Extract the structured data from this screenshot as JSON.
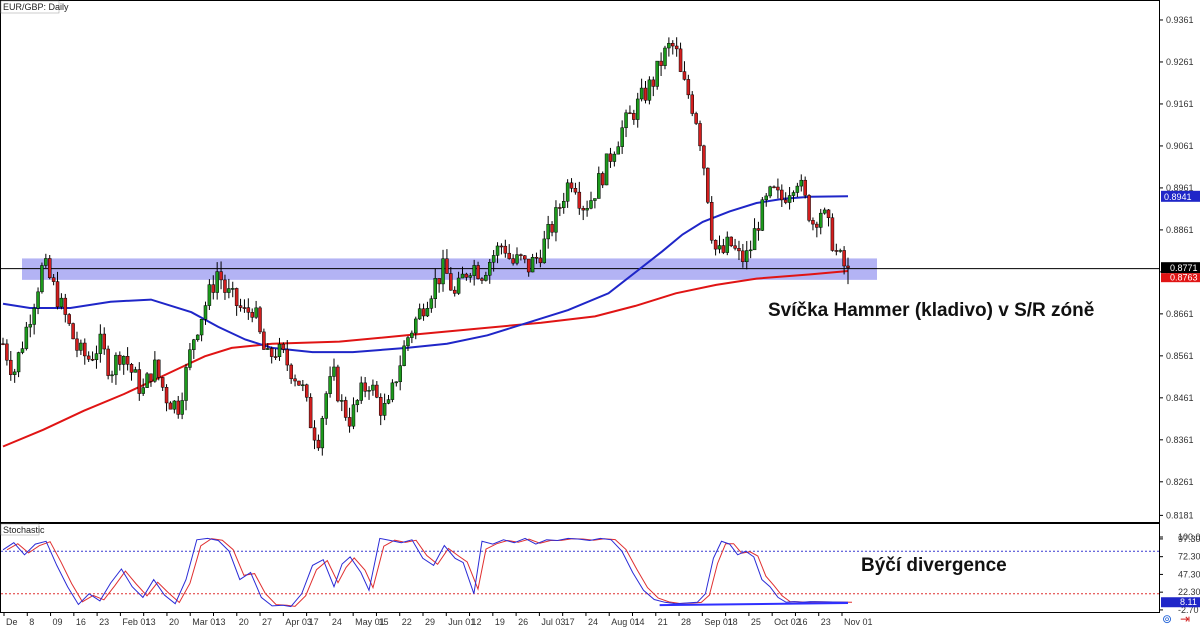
{
  "chart_title": "EUR/GBP: Daily",
  "stochastic_title": "Stochastic",
  "colors": {
    "bull_candle": "#1c9a1c",
    "bear_candle": "#d21e1e",
    "ma_blue": "#1f26c8",
    "ma_red": "#e01414",
    "zone_fill": "#9a9af0",
    "stoch_k": "#2b2bd6",
    "stoch_d": "#e03030",
    "level_line_blue": "#3a3ad0",
    "level_line_red": "#e03030",
    "divergence_line": "#3030ff"
  },
  "annotations": {
    "hammer": "Svíčka Hammer (kladivo) v S/R zóně",
    "divergence": "Býčí divergence"
  },
  "price_badges": {
    "blue_ma": "0.8941",
    "price": "0.8771",
    "red_ma": "0.8763",
    "stoch_value": "8.11"
  },
  "chart_data": {
    "type": "candlestick",
    "title": "EUR/GBP: Daily",
    "y_ticks": [
      "0.9361",
      "0.9261",
      "0.9161",
      "0.9061",
      "0.8961",
      "0.8861",
      "0.8761",
      "0.8661",
      "0.8561",
      "0.8461",
      "0.8361",
      "0.8261",
      "0.8181"
    ],
    "ylim": [
      0.817,
      0.938
    ],
    "x_tick_labels": [
      "De",
      "8",
      "09",
      "16",
      "23",
      "Feb 01",
      "13",
      "20",
      "Mar 01",
      "13",
      "20",
      "27",
      "Apr 03",
      "17",
      "24",
      "May 01",
      "15",
      "22",
      "29",
      "Jun 01",
      "12",
      "19",
      "26",
      "Jul 03",
      "17",
      "24",
      "Aug 01",
      "14",
      "21",
      "28",
      "Sep 01",
      "18",
      "25",
      "Oct 02",
      "16",
      "23",
      "Nov 01"
    ],
    "support_resistance_zone": [
      0.8742,
      0.8793
    ],
    "horizontal_level": 0.8771,
    "anchors": {
      "price_path": [
        [
          0,
          0.859
        ],
        [
          8,
          0.852
        ],
        [
          16,
          0.861
        ],
        [
          24,
          0.8705
        ],
        [
          30,
          0.878
        ],
        [
          34,
          0.875
        ],
        [
          40,
          0.8705
        ],
        [
          48,
          0.864
        ],
        [
          56,
          0.857
        ],
        [
          64,
          0.8555
        ],
        [
          72,
          0.859
        ],
        [
          80,
          0.8525
        ],
        [
          88,
          0.8575
        ],
        [
          96,
          0.852
        ],
        [
          104,
          0.8475
        ],
        [
          112,
          0.854
        ],
        [
          122,
          0.846
        ],
        [
          130,
          0.844
        ],
        [
          136,
          0.852
        ],
        [
          142,
          0.861
        ],
        [
          150,
          0.868
        ],
        [
          156,
          0.873
        ],
        [
          160,
          0.877
        ],
        [
          164,
          0.872
        ],
        [
          172,
          0.869
        ],
        [
          180,
          0.866
        ],
        [
          186,
          0.868
        ],
        [
          190,
          0.862
        ],
        [
          196,
          0.855
        ],
        [
          202,
          0.8575
        ],
        [
          208,
          0.856
        ],
        [
          214,
          0.853
        ],
        [
          222,
          0.849
        ],
        [
          228,
          0.841
        ],
        [
          234,
          0.836
        ],
        [
          240,
          0.847
        ],
        [
          246,
          0.851
        ],
        [
          252,
          0.844
        ],
        [
          258,
          0.841
        ],
        [
          266,
          0.847
        ],
        [
          272,
          0.85
        ],
        [
          280,
          0.844
        ],
        [
          286,
          0.843
        ],
        [
          292,
          0.851
        ],
        [
          300,
          0.86
        ],
        [
          306,
          0.864
        ],
        [
          312,
          0.868
        ],
        [
          320,
          0.873
        ],
        [
          328,
          0.877
        ],
        [
          336,
          0.87
        ],
        [
          342,
          0.875
        ],
        [
          348,
          0.878
        ],
        [
          356,
          0.876
        ],
        [
          364,
          0.88
        ],
        [
          372,
          0.883
        ],
        [
          378,
          0.878
        ],
        [
          384,
          0.879
        ],
        [
          390,
          0.877
        ],
        [
          398,
          0.88
        ],
        [
          404,
          0.884
        ],
        [
          412,
          0.89
        ],
        [
          418,
          0.896
        ],
        [
          424,
          0.899
        ],
        [
          430,
          0.892
        ],
        [
          436,
          0.893
        ],
        [
          442,
          0.897
        ],
        [
          448,
          0.901
        ],
        [
          454,
          0.906
        ],
        [
          460,
          0.91
        ],
        [
          466,
          0.913
        ],
        [
          472,
          0.916
        ],
        [
          478,
          0.919
        ],
        [
          484,
          0.922
        ],
        [
          490,
          0.927
        ],
        [
          496,
          0.93
        ],
        [
          500,
          0.929
        ],
        [
          504,
          0.922
        ],
        [
          510,
          0.918
        ],
        [
          516,
          0.912
        ],
        [
          520,
          0.904
        ],
        [
          524,
          0.894
        ],
        [
          528,
          0.882
        ],
        [
          534,
          0.88
        ],
        [
          540,
          0.883
        ],
        [
          548,
          0.879
        ],
        [
          554,
          0.88
        ],
        [
          560,
          0.887
        ],
        [
          566,
          0.892
        ],
        [
          572,
          0.895
        ],
        [
          578,
          0.893
        ],
        [
          584,
          0.896
        ],
        [
          590,
          0.899
        ],
        [
          596,
          0.893
        ],
        [
          602,
          0.888
        ],
        [
          608,
          0.891
        ],
        [
          614,
          0.886
        ],
        [
          620,
          0.88
        ],
        [
          626,
          0.877
        ],
        [
          628,
          0.8771
        ]
      ],
      "blue_ma": [
        [
          0,
          0.8685
        ],
        [
          20,
          0.8675
        ],
        [
          50,
          0.8675
        ],
        [
          80,
          0.869
        ],
        [
          110,
          0.8695
        ],
        [
          140,
          0.8665
        ],
        [
          160,
          0.863
        ],
        [
          180,
          0.86
        ],
        [
          200,
          0.858
        ],
        [
          230,
          0.857
        ],
        [
          260,
          0.857
        ],
        [
          300,
          0.858
        ],
        [
          330,
          0.859
        ],
        [
          360,
          0.861
        ],
        [
          390,
          0.864
        ],
        [
          420,
          0.867
        ],
        [
          450,
          0.871
        ],
        [
          470,
          0.876
        ],
        [
          490,
          0.881
        ],
        [
          505,
          0.885
        ],
        [
          520,
          0.888
        ],
        [
          540,
          0.8905
        ],
        [
          560,
          0.8925
        ],
        [
          580,
          0.8935
        ],
        [
          600,
          0.894
        ],
        [
          628,
          0.8941
        ]
      ],
      "red_ma": [
        [
          0,
          0.8345
        ],
        [
          30,
          0.8385
        ],
        [
          60,
          0.843
        ],
        [
          90,
          0.847
        ],
        [
          110,
          0.85
        ],
        [
          130,
          0.853
        ],
        [
          150,
          0.856
        ],
        [
          170,
          0.858
        ],
        [
          200,
          0.859
        ],
        [
          250,
          0.8595
        ],
        [
          300,
          0.861
        ],
        [
          350,
          0.8625
        ],
        [
          400,
          0.864
        ],
        [
          440,
          0.8655
        ],
        [
          470,
          0.868
        ],
        [
          500,
          0.871
        ],
        [
          530,
          0.873
        ],
        [
          560,
          0.8745
        ],
        [
          600,
          0.8755
        ],
        [
          628,
          0.8763
        ]
      ],
      "stoch_k": [
        [
          0,
          82
        ],
        [
          8,
          92
        ],
        [
          16,
          75
        ],
        [
          24,
          90
        ],
        [
          32,
          94
        ],
        [
          40,
          60
        ],
        [
          48,
          30
        ],
        [
          56,
          5
        ],
        [
          64,
          20
        ],
        [
          72,
          10
        ],
        [
          80,
          35
        ],
        [
          88,
          55
        ],
        [
          96,
          30
        ],
        [
          104,
          15
        ],
        [
          112,
          40
        ],
        [
          120,
          18
        ],
        [
          128,
          6
        ],
        [
          136,
          40
        ],
        [
          144,
          96
        ],
        [
          152,
          98
        ],
        [
          160,
          95
        ],
        [
          168,
          80
        ],
        [
          176,
          40
        ],
        [
          184,
          50
        ],
        [
          192,
          15
        ],
        [
          200,
          3
        ],
        [
          208,
          4
        ],
        [
          214,
          2
        ],
        [
          222,
          20
        ],
        [
          230,
          60
        ],
        [
          238,
          68
        ],
        [
          246,
          30
        ],
        [
          252,
          62
        ],
        [
          258,
          72
        ],
        [
          266,
          50
        ],
        [
          272,
          25
        ],
        [
          280,
          98
        ],
        [
          288,
          95
        ],
        [
          296,
          92
        ],
        [
          304,
          96
        ],
        [
          312,
          70
        ],
        [
          320,
          60
        ],
        [
          328,
          88
        ],
        [
          336,
          70
        ],
        [
          342,
          64
        ],
        [
          350,
          20
        ],
        [
          356,
          94
        ],
        [
          364,
          90
        ],
        [
          372,
          96
        ],
        [
          380,
          92
        ],
        [
          388,
          98
        ],
        [
          396,
          90
        ],
        [
          404,
          96
        ],
        [
          412,
          95
        ],
        [
          420,
          98
        ],
        [
          428,
          97
        ],
        [
          436,
          95
        ],
        [
          444,
          98
        ],
        [
          452,
          96
        ],
        [
          460,
          80
        ],
        [
          468,
          50
        ],
        [
          476,
          25
        ],
        [
          484,
          12
        ],
        [
          492,
          8
        ],
        [
          500,
          6
        ],
        [
          508,
          7
        ],
        [
          516,
          8
        ],
        [
          522,
          20
        ],
        [
          528,
          70
        ],
        [
          534,
          94
        ],
        [
          540,
          90
        ],
        [
          546,
          75
        ],
        [
          552,
          80
        ],
        [
          558,
          72
        ],
        [
          564,
          40
        ],
        [
          570,
          30
        ],
        [
          576,
          15
        ],
        [
          582,
          8
        ],
        [
          588,
          9
        ],
        [
          594,
          8
        ],
        [
          600,
          9
        ],
        [
          628,
          8
        ]
      ]
    },
    "stochastic": {
      "levels": [
        80,
        20
      ],
      "y_ticks": [
        "100.00",
        "97.30",
        "72.30",
        "47.30",
        "22.30",
        "-2.70"
      ],
      "value": 8.11
    }
  }
}
